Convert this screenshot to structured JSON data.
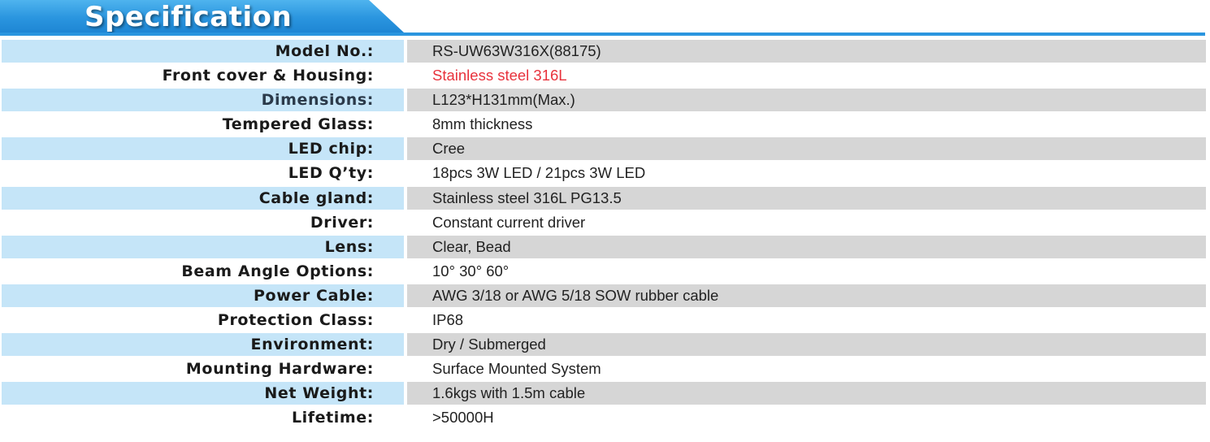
{
  "header": {
    "title": "Specification"
  },
  "colors": {
    "accent": "#2a95df",
    "label_bg": "#c5e5f8",
    "value_bg": "#d6d6d6",
    "highlight_text": "#e8323c"
  },
  "specs": [
    {
      "label": "Model  No.:",
      "value": "RS-UW63W316X(88175)"
    },
    {
      "label": "Front cover & Housing:",
      "value": "Stainless steel 316L"
    },
    {
      "label": "Dimensions:",
      "value": "L123*H131mm(Max.)"
    },
    {
      "label": "Tempered Glass:",
      "value": "8mm thickness"
    },
    {
      "label": "LED chip:",
      "value": "Cree"
    },
    {
      "label": "LED Q’ty:",
      "value": "18pcs 3W LED / 21pcs 3W LED"
    },
    {
      "label": "Cable gland:",
      "value": "Stainless steel 316L PG13.5"
    },
    {
      "label": "Driver:",
      "value": "Constant current driver"
    },
    {
      "label": "Lens:",
      "value": "Clear, Bead"
    },
    {
      "label": "Beam Angle Options:",
      "value": "10°  30°  60°"
    },
    {
      "label": "Power Cable:",
      "value": "AWG 3/18 or AWG 5/18 SOW rubber cable"
    },
    {
      "label": "Protection Class:",
      "value": "IP68"
    },
    {
      "label": "Environment:",
      "value": "Dry / Submerged"
    },
    {
      "label": "Mounting Hardware:",
      "value": "Surface Mounted System"
    },
    {
      "label": "Net Weight:",
      "value": "1.6kgs with 1.5m cable"
    },
    {
      "label": "Lifetime:",
      "value": ">50000H"
    }
  ]
}
